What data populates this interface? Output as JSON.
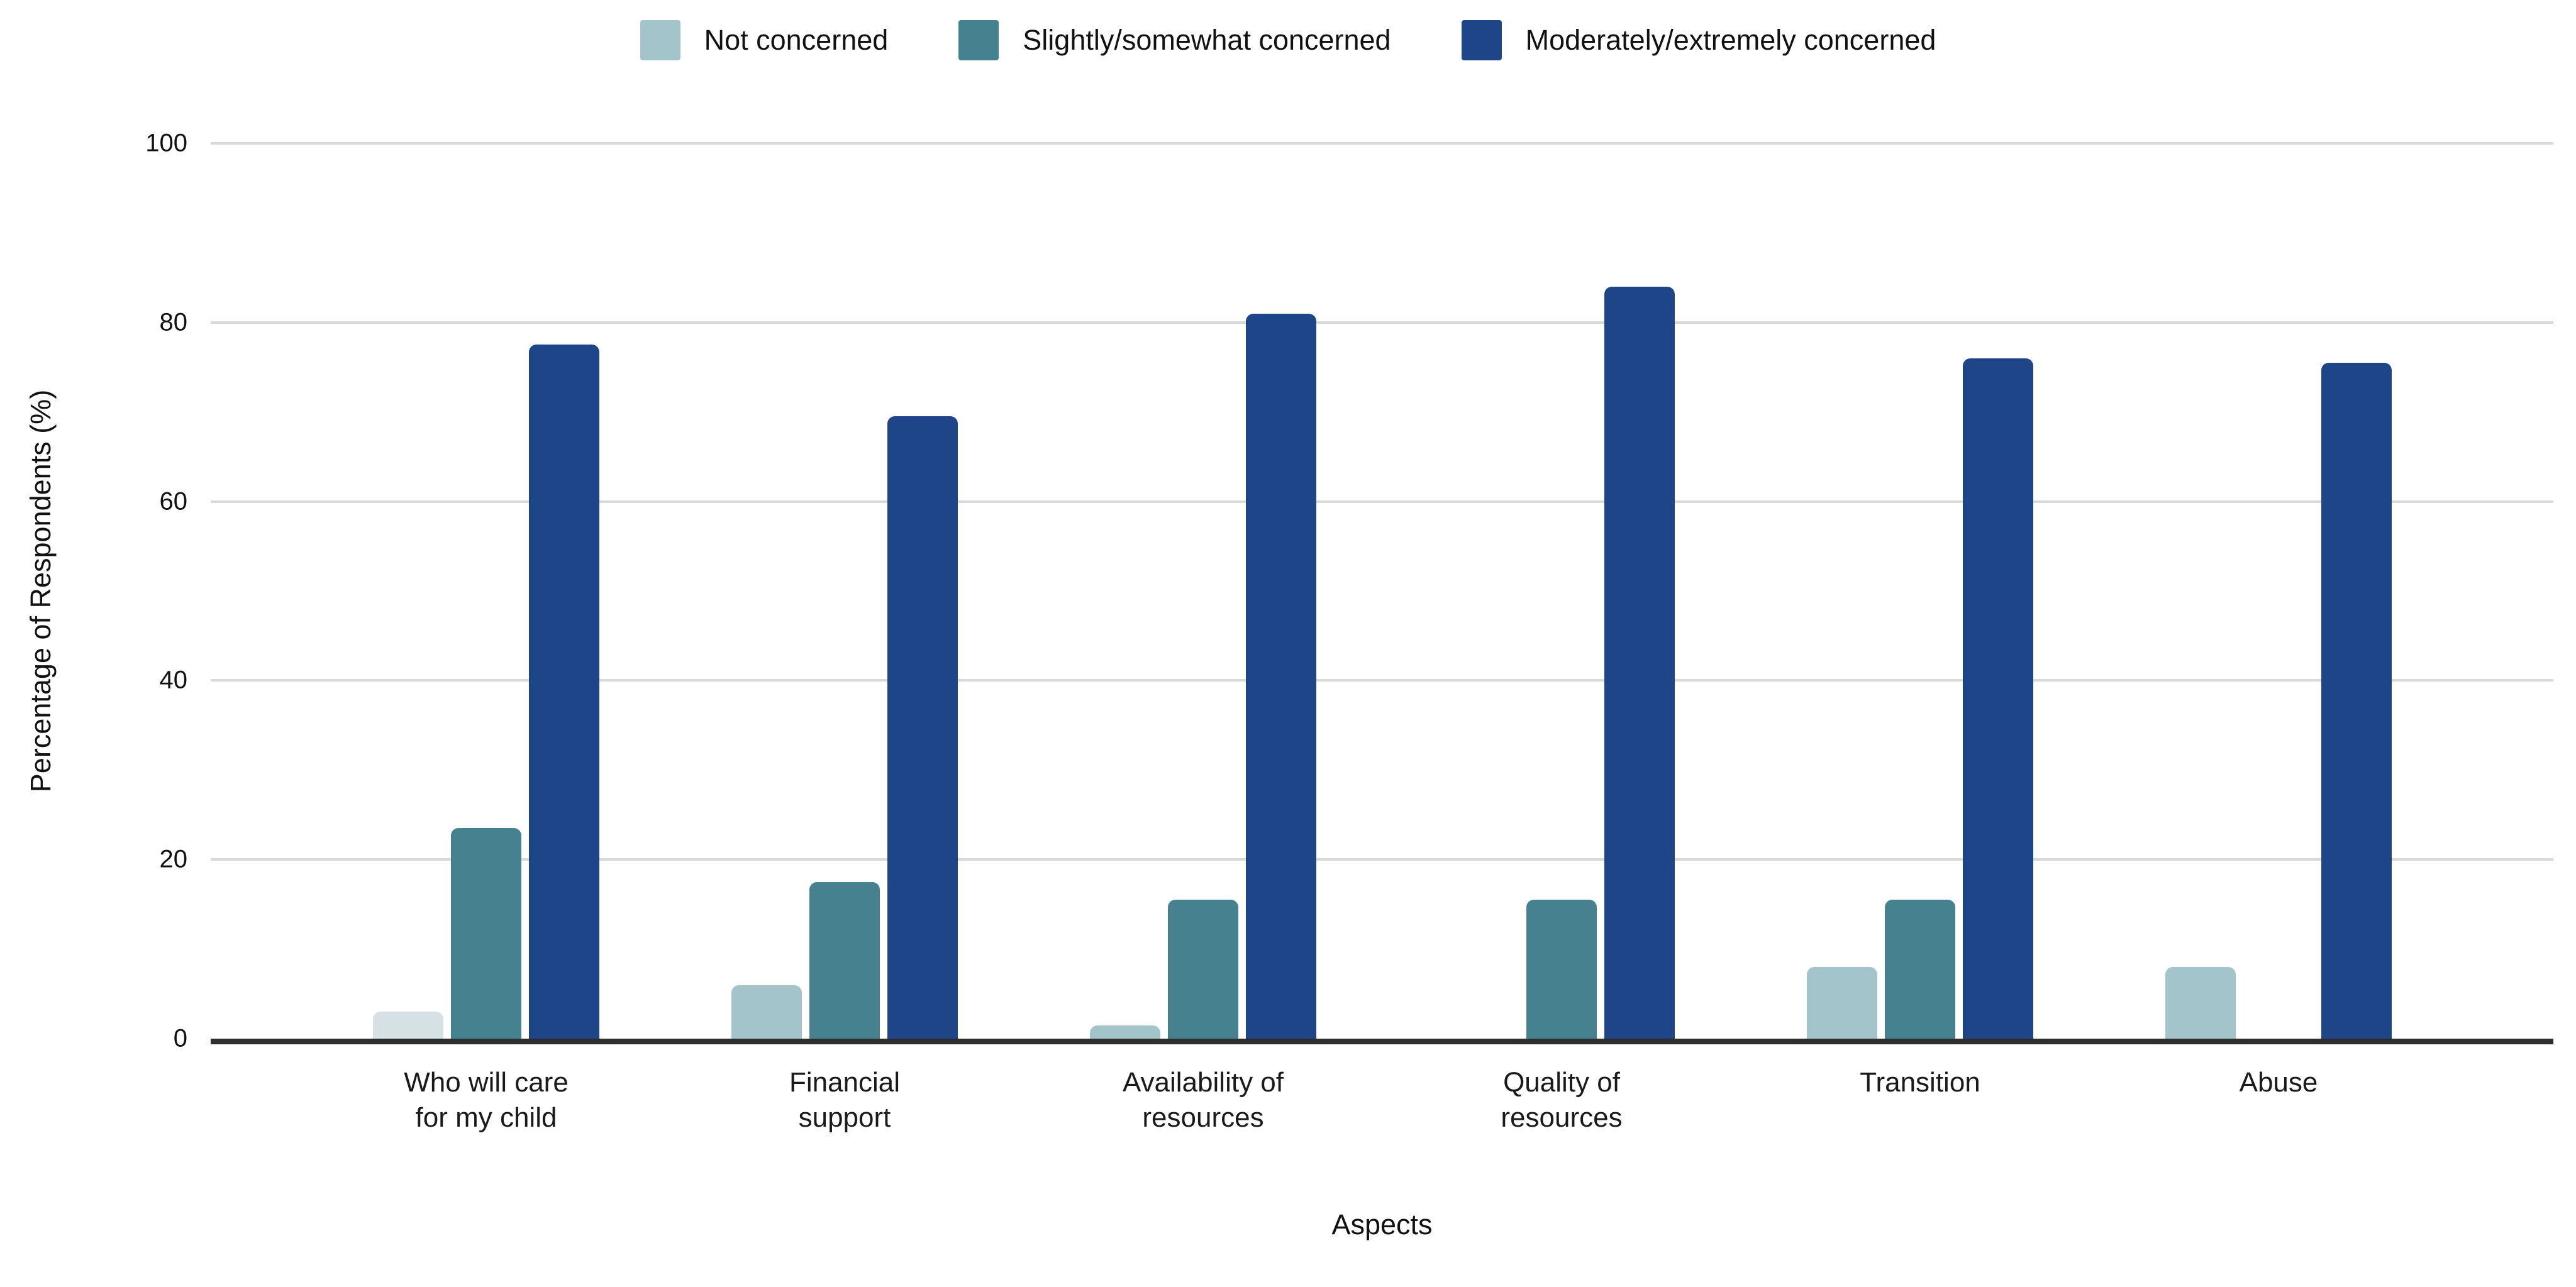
{
  "chart_data": {
    "type": "bar",
    "title": "",
    "xlabel": "Aspects",
    "ylabel": "Percentage of Respondents (%)",
    "categories": [
      "Who will care\nfor my child",
      "Financial\nsupport",
      "Availability of\nresources",
      "Quality of\nresources",
      "Transition",
      "Abuse"
    ],
    "series": [
      {
        "name": "Not concerned",
        "color": "#a4c4cc",
        "values": [
          3,
          6,
          1.5,
          0,
          8,
          8
        ]
      },
      {
        "name": "Slightly/somewhat concerned",
        "color": "#46818f",
        "values": [
          23.5,
          17.5,
          15.5,
          15.5,
          15.5,
          0
        ]
      },
      {
        "name": "Moderately/extremely concerned",
        "color": "#1e4587",
        "values": [
          77.5,
          69.5,
          81,
          84,
          76,
          75.5
        ]
      }
    ],
    "bar_color_overrides": [
      {
        "category_index": 0,
        "series_index": 0,
        "color": "#d6e1e6"
      }
    ],
    "ylim": [
      0,
      100
    ],
    "yticks": [
      0,
      20,
      40,
      60,
      80,
      100
    ],
    "grid": true,
    "legend_position": "top",
    "background": "#ffffff",
    "gridline_color": "#d9d9d9",
    "axis_line_color": "#2e2e2e",
    "text_color": "#111111"
  }
}
